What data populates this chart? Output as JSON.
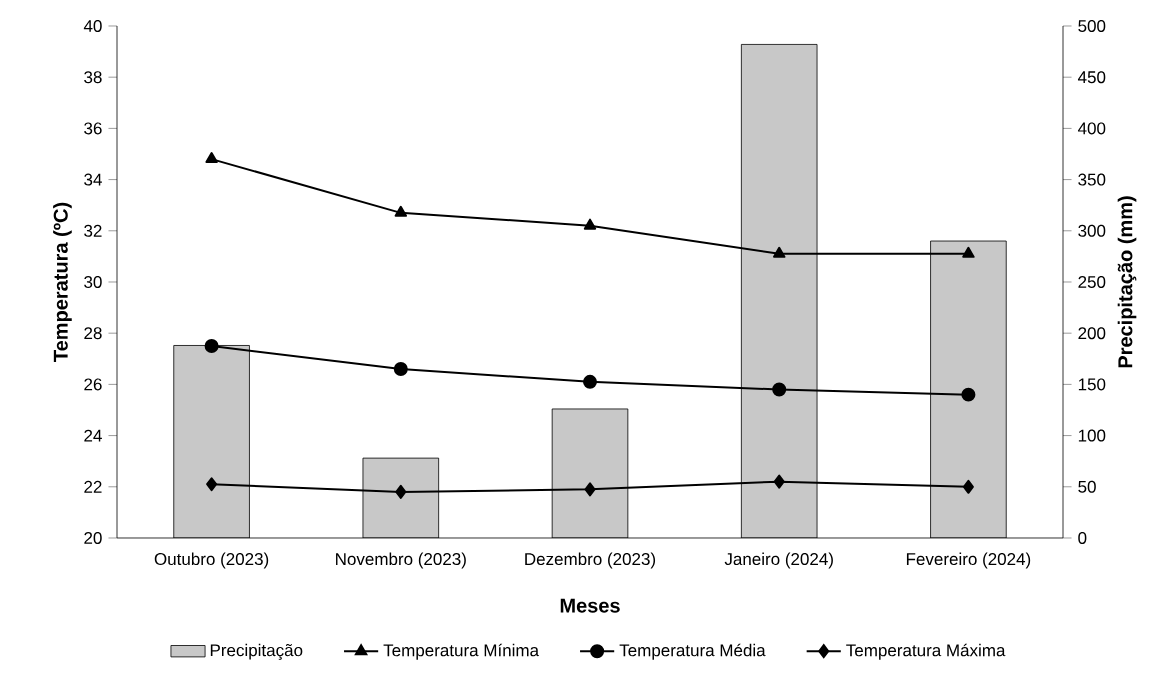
{
  "chart_data": {
    "type": "line",
    "xlabel": "Meses",
    "ylabel": "Temperatura (ºC)",
    "y2label": "Precipitação (mm)",
    "categories": [
      "Outubro (2023)",
      "Novembro (2023)",
      "Dezembro (2023)",
      "Janeiro (2024)",
      "Fevereiro (2024)"
    ],
    "series": [
      {
        "name": "Precipitação",
        "type": "bar",
        "axis": "y2",
        "color": "#c8c8c8",
        "values": [
          188,
          78,
          126,
          482,
          290
        ]
      },
      {
        "name": "Temperatura Mínima",
        "marker": "triangle",
        "color": "#000000",
        "values": [
          34.8,
          32.7,
          32.2,
          31.1,
          31.1
        ]
      },
      {
        "name": "Temperatura Média",
        "marker": "circle",
        "color": "#000000",
        "values": [
          27.5,
          26.6,
          26.1,
          25.8,
          25.6
        ]
      },
      {
        "name": "Temperatura Máxima",
        "marker": "diamond",
        "color": "#000000",
        "values": [
          22.1,
          21.8,
          21.9,
          22.2,
          22.0
        ]
      }
    ],
    "ylim": [
      20,
      40
    ],
    "yticks": [
      20,
      22,
      24,
      26,
      28,
      30,
      32,
      34,
      36,
      38,
      40
    ],
    "y2lim": [
      0,
      500
    ],
    "y2ticks": [
      0,
      50,
      100,
      150,
      200,
      250,
      300,
      350,
      400,
      450,
      500
    ],
    "grid": false,
    "legend": "bottom"
  }
}
